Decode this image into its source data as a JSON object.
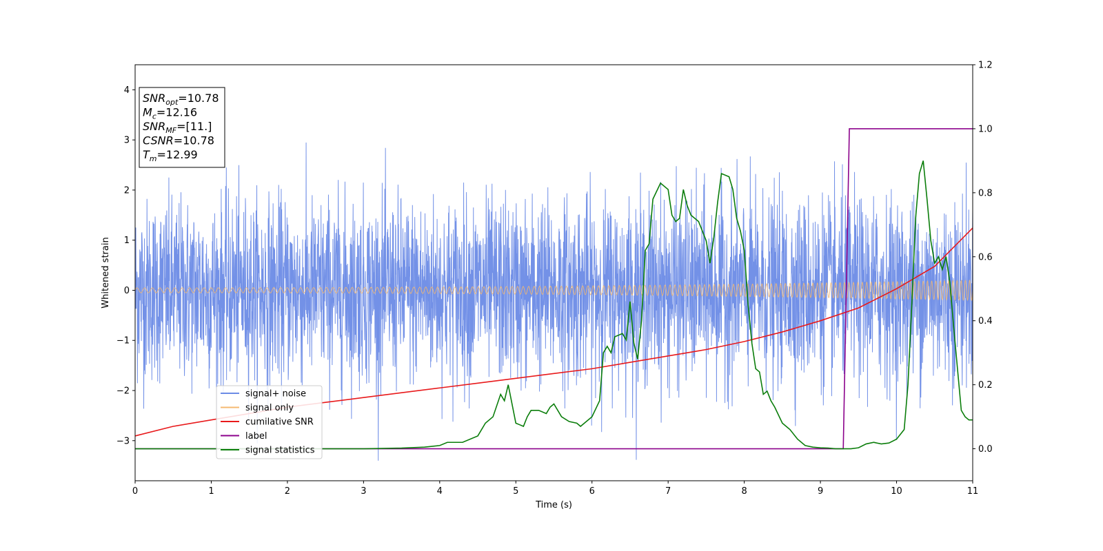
{
  "chart_data": {
    "type": "line",
    "xlabel": "Time (s)",
    "ylabel": "Whitened strain",
    "xlim": [
      0,
      11
    ],
    "ylim": [
      -3.8,
      4.5
    ],
    "y2lim": [
      -0.1,
      1.2
    ],
    "xticks": [
      "0",
      "1",
      "2",
      "3",
      "4",
      "5",
      "6",
      "7",
      "8",
      "9",
      "10",
      "11"
    ],
    "yticks": [
      "−3",
      "−2",
      "−1",
      "0",
      "1",
      "2",
      "3",
      "4"
    ],
    "y2ticks": [
      "0.0",
      "0.2",
      "0.4",
      "0.6",
      "0.8",
      "1.0",
      "1.2"
    ],
    "grid": false,
    "legend_position": "lower-left",
    "annotation": {
      "lines": [
        {
          "base": "SNR",
          "sub": "opt",
          "value": "=10.78"
        },
        {
          "base": "M",
          "sub": "c",
          "value": "=12.16"
        },
        {
          "base": "SNR",
          "sub": "MF",
          "value": "=[11.]"
        },
        {
          "base": "CSNR",
          "sub": "",
          "value": "=10.78"
        },
        {
          "base": "T",
          "sub": "m",
          "value": "=12.99"
        }
      ]
    },
    "series": [
      {
        "name": "signal+ noise",
        "axis": "left",
        "color": "#6b8be6",
        "kind": "noise",
        "typical_range": [
          -2.0,
          2.0
        ],
        "peak_max": 3.15,
        "peak_min": -3.4
      },
      {
        "name": "signal only",
        "axis": "left",
        "color": "#f5b870",
        "kind": "chirp",
        "amplitude_start": 0.05,
        "amplitude_end": 0.2,
        "cycles": 155
      },
      {
        "name": "cumilative SNR",
        "axis": "right",
        "color": "#e8191b",
        "x": [
          0,
          0.5,
          1,
          1.5,
          2,
          2.5,
          3,
          3.5,
          4,
          4.5,
          5,
          5.5,
          6,
          6.5,
          7,
          7.5,
          8,
          8.5,
          9,
          9.5,
          10,
          10.5,
          11
        ],
        "y": [
          0.04,
          0.07,
          0.09,
          0.11,
          0.13,
          0.145,
          0.16,
          0.175,
          0.19,
          0.205,
          0.22,
          0.235,
          0.25,
          0.27,
          0.29,
          0.31,
          0.335,
          0.365,
          0.4,
          0.44,
          0.5,
          0.57,
          0.69
        ]
      },
      {
        "name": "label",
        "axis": "right",
        "color": "#8b008b",
        "x": [
          0,
          9.3,
          9.38,
          11
        ],
        "y": [
          0,
          0,
          1,
          1
        ]
      },
      {
        "name": "signal statistics",
        "axis": "right",
        "color": "#0a7d0a",
        "x": [
          0,
          0.5,
          1,
          1.5,
          2,
          2.5,
          3,
          3.5,
          3.8,
          4.0,
          4.1,
          4.3,
          4.5,
          4.6,
          4.7,
          4.8,
          4.85,
          4.9,
          5.0,
          5.05,
          5.1,
          5.15,
          5.2,
          5.3,
          5.4,
          5.45,
          5.5,
          5.6,
          5.7,
          5.8,
          5.85,
          5.9,
          6.0,
          6.1,
          6.15,
          6.2,
          6.25,
          6.3,
          6.4,
          6.45,
          6.5,
          6.55,
          6.6,
          6.65,
          6.7,
          6.75,
          6.8,
          6.9,
          7.0,
          7.05,
          7.1,
          7.15,
          7.2,
          7.25,
          7.3,
          7.4,
          7.5,
          7.55,
          7.6,
          7.65,
          7.7,
          7.8,
          7.85,
          7.9,
          7.95,
          8.0,
          8.05,
          8.1,
          8.15,
          8.2,
          8.25,
          8.3,
          8.35,
          8.4,
          8.5,
          8.6,
          8.7,
          8.8,
          8.9,
          9.0,
          9.1,
          9.2,
          9.3,
          9.4,
          9.5,
          9.6,
          9.7,
          9.8,
          9.9,
          10.0,
          10.1,
          10.15,
          10.2,
          10.25,
          10.3,
          10.35,
          10.4,
          10.45,
          10.5,
          10.55,
          10.6,
          10.65,
          10.7,
          10.75,
          10.8,
          10.85,
          10.9,
          10.95,
          11.0
        ],
        "y": [
          0.0,
          0.0,
          0.0,
          0.0,
          0.0,
          0.0,
          0.0,
          0.002,
          0.005,
          0.01,
          0.02,
          0.02,
          0.04,
          0.08,
          0.1,
          0.17,
          0.15,
          0.2,
          0.08,
          0.075,
          0.07,
          0.1,
          0.12,
          0.12,
          0.11,
          0.13,
          0.14,
          0.1,
          0.085,
          0.08,
          0.07,
          0.08,
          0.1,
          0.15,
          0.3,
          0.32,
          0.3,
          0.35,
          0.36,
          0.34,
          0.46,
          0.33,
          0.28,
          0.4,
          0.62,
          0.64,
          0.78,
          0.83,
          0.81,
          0.73,
          0.71,
          0.72,
          0.81,
          0.76,
          0.73,
          0.71,
          0.65,
          0.58,
          0.66,
          0.77,
          0.86,
          0.85,
          0.81,
          0.72,
          0.68,
          0.62,
          0.45,
          0.33,
          0.25,
          0.24,
          0.17,
          0.18,
          0.15,
          0.13,
          0.08,
          0.06,
          0.03,
          0.01,
          0.005,
          0.003,
          0.002,
          0.0,
          0.0,
          0.0,
          0.003,
          0.015,
          0.02,
          0.015,
          0.018,
          0.03,
          0.06,
          0.2,
          0.45,
          0.72,
          0.86,
          0.9,
          0.78,
          0.65,
          0.58,
          0.6,
          0.56,
          0.6,
          0.52,
          0.38,
          0.25,
          0.12,
          0.1,
          0.09,
          0.09
        ]
      }
    ]
  }
}
